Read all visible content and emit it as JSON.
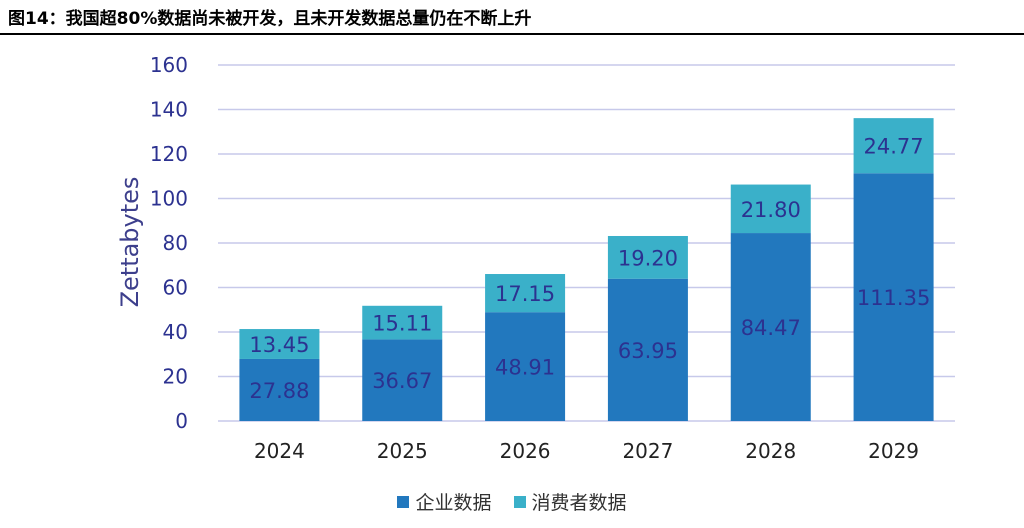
{
  "caption": "图14：我国超80%数据尚未被开发，且未开发数据总量仍在不断上升",
  "chart_data": {
    "type": "bar",
    "stacked": true,
    "categories": [
      "2024",
      "2025",
      "2026",
      "2027",
      "2028",
      "2029"
    ],
    "series": [
      {
        "name": "企业数据",
        "values": [
          27.88,
          36.67,
          48.91,
          63.95,
          84.47,
          111.35
        ],
        "value_labels": [
          "27.88",
          "36.67",
          "48.91",
          "63.95",
          "84.47",
          "111.35"
        ],
        "color": "#2278be"
      },
      {
        "name": "消费者数据",
        "values": [
          13.45,
          15.11,
          17.15,
          19.2,
          21.8,
          24.77
        ],
        "value_labels": [
          "13.45",
          "15.11",
          "17.15",
          "19.20",
          "21.80",
          "24.77"
        ],
        "color": "#3ab0c9"
      }
    ],
    "ylabel": "Zettabytes",
    "xlabel": "",
    "ylim": [
      0,
      160
    ],
    "yticks": [
      "0",
      "20",
      "40",
      "60",
      "80",
      "100",
      "120",
      "140",
      "160"
    ],
    "grid": true,
    "legend_position": "bottom-center",
    "colors": {
      "grid": "#c7c9ea",
      "tick_text": "#2c3290",
      "label_text": "#2c3290",
      "axis_title": "#3d3f8c"
    }
  }
}
